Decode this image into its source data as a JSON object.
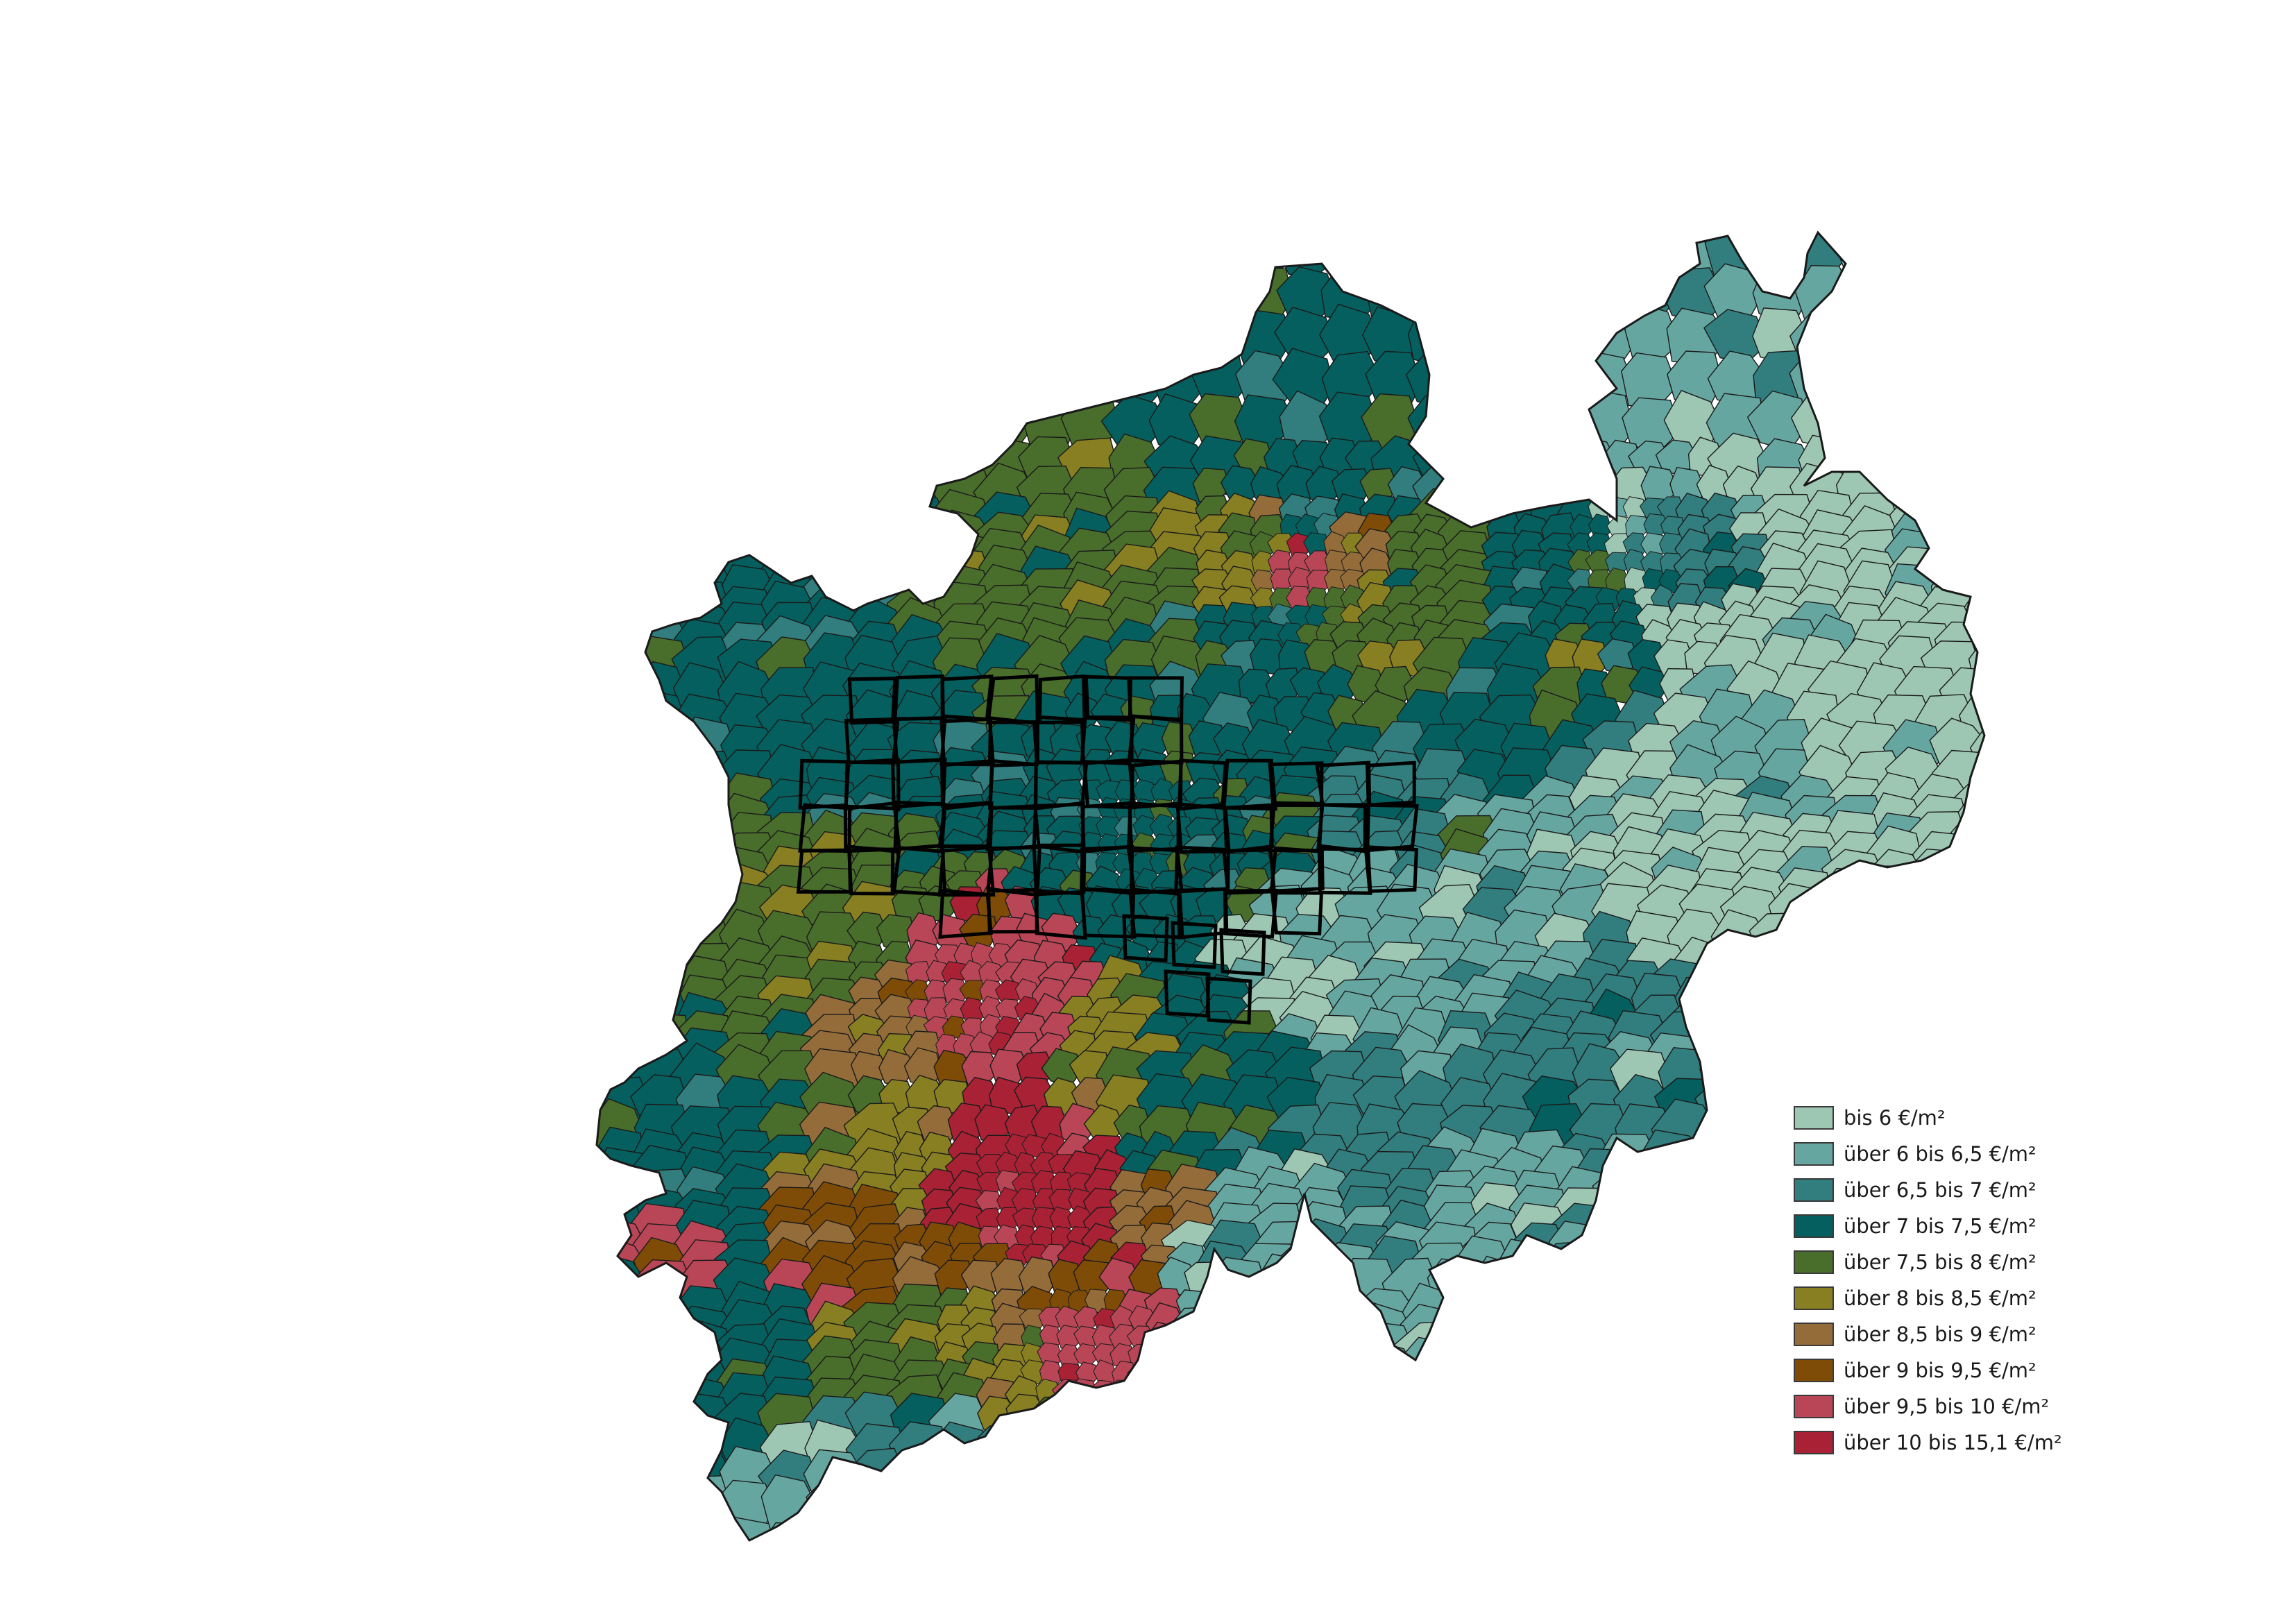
{
  "map": {
    "classes": [
      {
        "label": "bis 6 €/m²",
        "color": "#9dc6b3"
      },
      {
        "label": "über 6 bis 6,5 €/m²",
        "color": "#66a6a1"
      },
      {
        "label": "über 6,5 bis 7 €/m²",
        "color": "#327d7e"
      },
      {
        "label": "über 7 bis 7,5 €/m²",
        "color": "#055f5e"
      },
      {
        "label": "über 7,5 bis 8 €/m²",
        "color": "#496d2b"
      },
      {
        "label": "über 8 bis 8,5 €/m²",
        "color": "#877f22"
      },
      {
        "label": "über 8,5 bis 9 €/m²",
        "color": "#946c3a"
      },
      {
        "label": "über 9 bis 9,5 €/m²",
        "color": "#7f4c07"
      },
      {
        "label": "über 9,5 bis 10 €/m²",
        "color": "#b94657"
      },
      {
        "label": "über 10 bis 15,1 €/m²",
        "color": "#a82135"
      }
    ],
    "outline_color": "#1a1a1a",
    "ruhr_outline_color": "#000000"
  }
}
